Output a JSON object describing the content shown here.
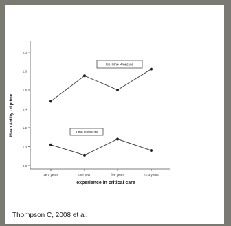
{
  "caption": "Thompson C, 2008 et al.",
  "colors": {
    "frame": "#7a7a73",
    "card": "#ffffff",
    "line": "#444444",
    "marker": "#222222"
  },
  "chart_data": {
    "type": "line",
    "title": "",
    "xlabel": "experience in critical care",
    "ylabel": "Mean Ability - d prime",
    "categories": [
      "zero years",
      "one year",
      "five years",
      "<= 3 years"
    ],
    "yticks": [
      "0.8",
      "1.0",
      "1.2",
      "1.4",
      "1.6",
      "1.8",
      "2.0"
    ],
    "ylim": [
      0.8,
      2.05
    ],
    "grid": false,
    "series": [
      {
        "name": "No Time Pressure",
        "values": [
          1.48,
          1.75,
          1.6,
          1.82
        ]
      },
      {
        "name": "Time Pressure",
        "values": [
          1.02,
          0.91,
          1.08,
          0.96
        ]
      }
    ]
  }
}
